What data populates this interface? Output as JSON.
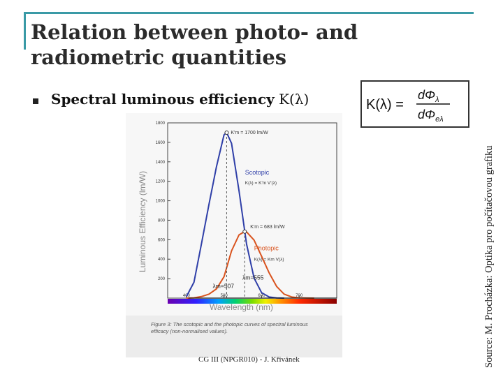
{
  "slide": {
    "title_line1": "Relation between photo- and",
    "title_line2": "radiometric quantities",
    "bullet_label": "Spectral luminous efficiency",
    "bullet_symbol": "K(λ)",
    "source": "Source: M. Procházka: Optika pro počítačovou grafiku",
    "footer": "CG III (NPGR010) - J. Křivánek"
  },
  "formula": {
    "lhs": "K(λ) =",
    "numerator": "dΦ",
    "numerator_sub": "λ",
    "denominator": "dΦ",
    "denominator_sub": "eλ"
  },
  "colors": {
    "frame": "#3a9aa6",
    "scotopic": "#2f3fa8",
    "photopic": "#d9531e",
    "caption_bg": "#ececec"
  },
  "chart_data": {
    "type": "line",
    "xlabel": "Wavelength (nm)",
    "ylabel": "Luminous Efficiency (lm/W)",
    "xlim": [
      350,
      800
    ],
    "ylim": [
      0,
      1800
    ],
    "xticks": [
      "400",
      "500",
      "600",
      "700"
    ],
    "yticks": [
      "200",
      "400",
      "600",
      "800",
      "1000",
      "1200",
      "1400",
      "1600",
      "1800"
    ],
    "series": [
      {
        "name": "Scotopic",
        "formula": "K(λ) = K'm V'(λ)",
        "peak_label": "K'm = 1700 lm/W",
        "peak_wavelength_label": "λm=507",
        "x": [
          400,
          420,
          440,
          460,
          480,
          500,
          507,
          520,
          540,
          560,
          580,
          600,
          620,
          640,
          660
        ],
        "y": [
          16,
          163,
          559,
          964,
          1352,
          1677,
          1700,
          1590,
          1100,
          555,
          206,
          56,
          12,
          2,
          0
        ]
      },
      {
        "name": "Photopic",
        "formula": "K(λ) = Km V(λ)",
        "peak_label": "K'm = 683 lm/W",
        "peak_wavelength_label": "λm=555",
        "x": [
          400,
          420,
          440,
          460,
          480,
          500,
          520,
          540,
          555,
          560,
          580,
          600,
          620,
          640,
          660,
          680,
          700,
          720,
          740
        ],
        "y": [
          0,
          3,
          16,
          41,
          95,
          220,
          485,
          650,
          683,
          680,
          596,
          430,
          260,
          120,
          41,
          12,
          3,
          1,
          0
        ]
      }
    ],
    "caption": "Figure 3: The scotopic and the photopic curves of spectral luminous efficacy (non-normalised values)."
  }
}
